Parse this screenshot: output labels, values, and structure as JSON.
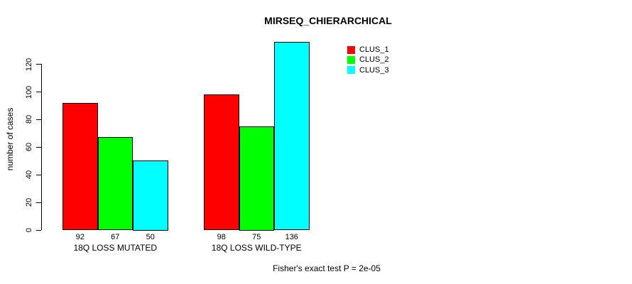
{
  "chart_data": {
    "type": "bar",
    "title": "MIRSEQ_CHIERARCHICAL",
    "ylabel": "number of cases",
    "xlabel": "",
    "categories": [
      "18Q LOSS MUTATED",
      "18Q LOSS WILD-TYPE"
    ],
    "series": [
      {
        "name": "CLUS_1",
        "color": "#ff0000",
        "values": [
          92,
          98
        ]
      },
      {
        "name": "CLUS_2",
        "color": "#00ff00",
        "values": [
          67,
          75
        ]
      },
      {
        "name": "CLUS_3",
        "color": "#00ffff",
        "values": [
          50,
          136
        ]
      }
    ],
    "bar_value_labels": [
      [
        92,
        67,
        50
      ],
      [
        98,
        75,
        136
      ]
    ],
    "yticks": [
      0,
      20,
      40,
      60,
      80,
      100,
      120
    ],
    "ylim": [
      0,
      137
    ],
    "grid": false,
    "legend_position": "top-right",
    "annotation": "Fisher's exact test P = 2e-05",
    "bar_border_color": "#000000",
    "text_color": "#000000",
    "background_color": "#ffffff"
  }
}
